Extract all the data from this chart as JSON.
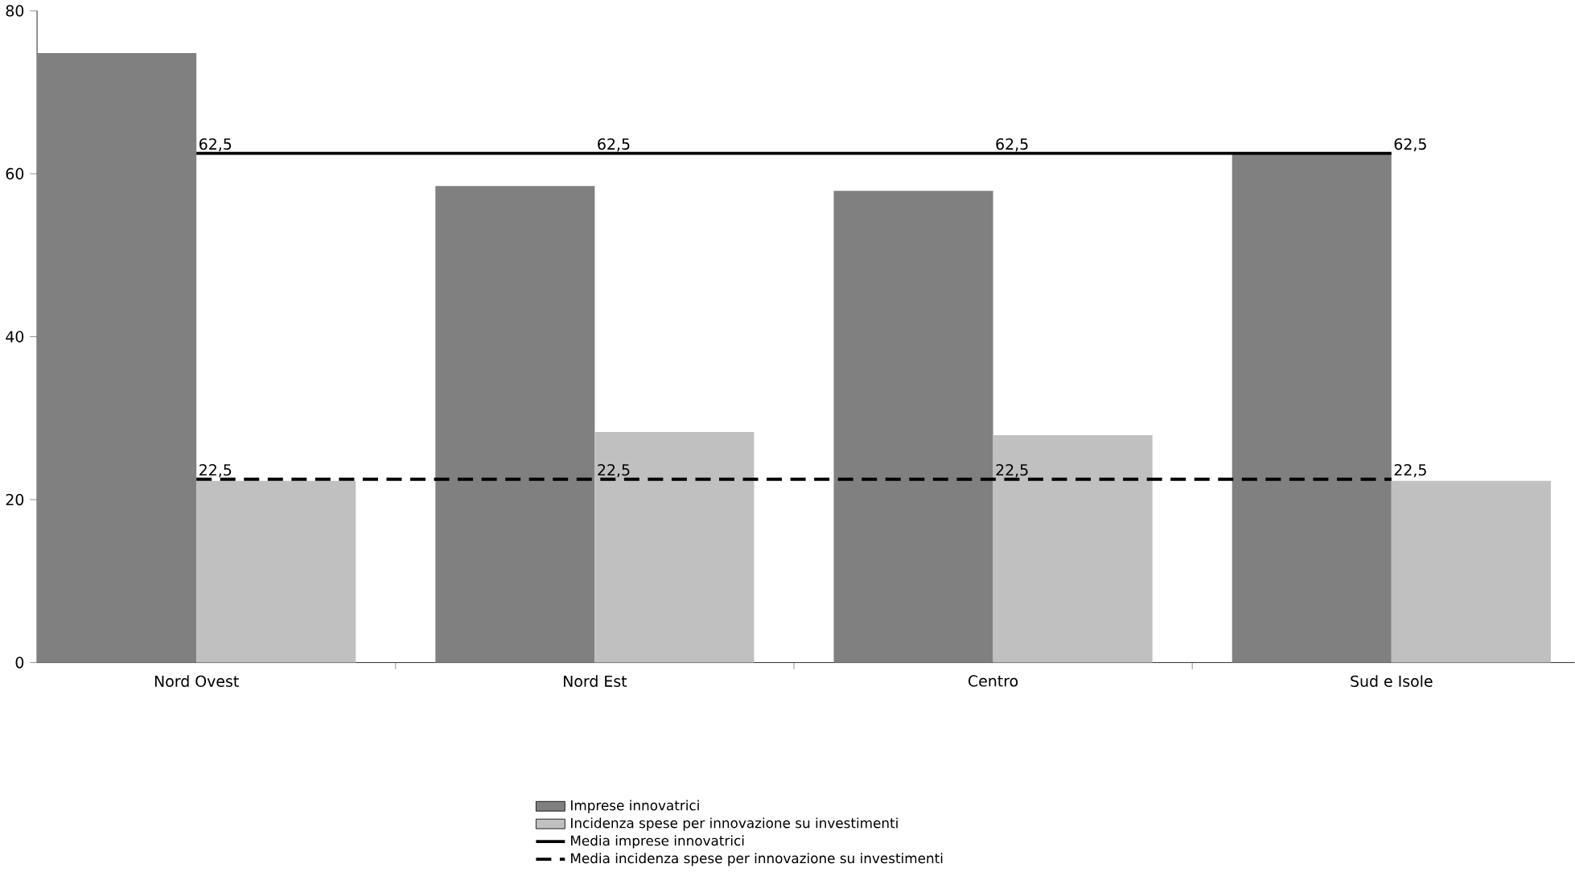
{
  "chart_data": {
    "type": "bar",
    "categories": [
      "Nord Ovest",
      "Nord Est",
      "Centro",
      "Sud e Isole"
    ],
    "series": [
      {
        "name": "Imprese innovatrici",
        "color": "#808080",
        "values": [
          74.8,
          58.5,
          57.9,
          62.5
        ]
      },
      {
        "name": "Incidenza spese per innovazione su investimenti",
        "color": "#c0c0c0",
        "values": [
          22.3,
          28.3,
          27.9,
          22.3
        ]
      },
      {
        "name": "Media imprese innovatrici",
        "type": "line",
        "color": "#000000",
        "line_style": "solid",
        "values": [
          62.5,
          62.5,
          62.5,
          62.5
        ],
        "value_labels": [
          "62,5",
          "62,5",
          "62,5",
          "62,5"
        ]
      },
      {
        "name": "Media incidenza spese per innovazione su investimenti",
        "type": "line",
        "color": "#000000",
        "line_style": "dashed",
        "values": [
          22.5,
          22.5,
          22.5,
          22.5
        ],
        "value_labels": [
          "22,5",
          "22,5",
          "22,5",
          "22,5"
        ]
      }
    ],
    "ylim": [
      0,
      80
    ],
    "yticks": [
      0,
      20,
      40,
      60,
      80
    ],
    "grid": false,
    "legend": "bottom",
    "marker": "none"
  }
}
